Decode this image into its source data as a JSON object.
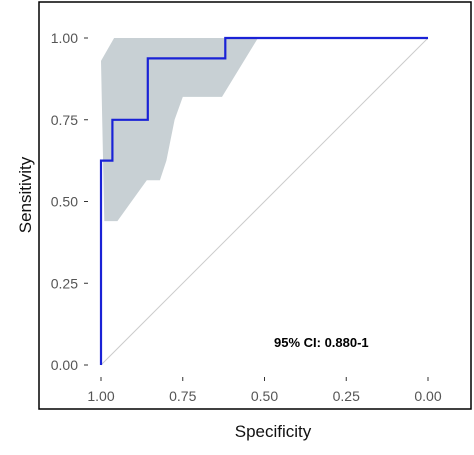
{
  "chart_data": {
    "type": "line",
    "title": "",
    "xlabel": "Specificity",
    "ylabel": "Sensitivity",
    "x_reversed": true,
    "xlim": [
      1.0,
      0.0
    ],
    "ylim": [
      0.0,
      1.0
    ],
    "x_ticks": [
      1.0,
      0.75,
      0.5,
      0.25,
      0.0
    ],
    "x_tick_labels": [
      "1.00",
      "0.75",
      "0.50",
      "0.25",
      "0.00"
    ],
    "y_ticks": [
      0.0,
      0.25,
      0.5,
      0.75,
      1.0
    ],
    "y_tick_labels": [
      "0.00",
      "0.25",
      "0.50",
      "0.75",
      "1.00"
    ],
    "grid": false,
    "annotation": "95% CI: 0.880-1",
    "series": [
      {
        "type": "step-line",
        "color": "#1a22d6",
        "points": [
          {
            "specificity": 1.0,
            "sensitivity": 0.0
          },
          {
            "specificity": 1.0,
            "sensitivity": 0.625
          },
          {
            "specificity": 0.965,
            "sensitivity": 0.625
          },
          {
            "specificity": 0.965,
            "sensitivity": 0.75
          },
          {
            "specificity": 0.857,
            "sensitivity": 0.75
          },
          {
            "specificity": 0.857,
            "sensitivity": 0.9375
          },
          {
            "specificity": 0.62,
            "sensitivity": 0.9375
          },
          {
            "specificity": 0.62,
            "sensitivity": 1.0
          },
          {
            "specificity": 0.0,
            "sensitivity": 1.0
          }
        ]
      }
    ],
    "ci_band": {
      "color": "#c8d0d4",
      "upper": [
        {
          "specificity": 1.0,
          "sensitivity": 0.93
        },
        {
          "specificity": 0.96,
          "sensitivity": 1.0
        },
        {
          "specificity": 0.52,
          "sensitivity": 1.0
        }
      ],
      "lower": [
        {
          "specificity": 0.63,
          "sensitivity": 0.82
        },
        {
          "specificity": 0.75,
          "sensitivity": 0.82
        },
        {
          "specificity": 0.775,
          "sensitivity": 0.75
        },
        {
          "specificity": 0.8,
          "sensitivity": 0.625
        },
        {
          "specificity": 0.82,
          "sensitivity": 0.565
        },
        {
          "specificity": 0.86,
          "sensitivity": 0.565
        },
        {
          "specificity": 0.95,
          "sensitivity": 0.44
        },
        {
          "specificity": 0.99,
          "sensitivity": 0.44
        }
      ]
    },
    "reference_line": {
      "from": [
        1.0,
        0.0
      ],
      "to": [
        0.0,
        1.0
      ],
      "color": "#cccccc"
    }
  }
}
